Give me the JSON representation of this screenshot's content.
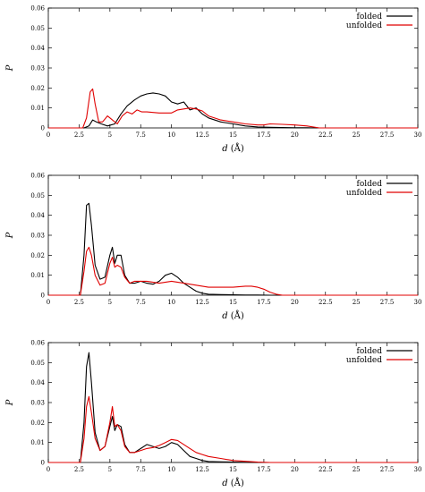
{
  "chart_data": [
    {
      "type": "line",
      "xlabel": "d",
      "xlabel_unit": "(Å)",
      "ylabel": "P",
      "xlim": [
        0,
        30
      ],
      "ylim": [
        0,
        0.06
      ],
      "xticks": [
        "0",
        "2.5",
        "5",
        "7.5",
        "10",
        "12.5",
        "15",
        "17.5",
        "20",
        "22.5",
        "25",
        "27.5",
        "30"
      ],
      "yticks": [
        "0",
        "0.01",
        "0.02",
        "0.03",
        "0.04",
        "0.05",
        "0.06"
      ],
      "grid": false,
      "legend_position": "top-right",
      "series": [
        {
          "name": "folded",
          "color": "#000000",
          "x": [
            0,
            2.9,
            3.3,
            3.6,
            3.9,
            4.3,
            4.8,
            5.4,
            5.9,
            6.4,
            7.0,
            7.5,
            8.0,
            8.5,
            9.0,
            9.5,
            10.0,
            10.5,
            11.0,
            11.5,
            12.0,
            12.5,
            13.0,
            14.0,
            15.0,
            16.0,
            17.0,
            18.0,
            19.0,
            20.0,
            21.0,
            22.0,
            22.5,
            30
          ],
          "y": [
            0,
            0,
            0.001,
            0.004,
            0.003,
            0.002,
            0.001,
            0.002,
            0.007,
            0.011,
            0.014,
            0.016,
            0.017,
            0.0175,
            0.017,
            0.016,
            0.013,
            0.012,
            0.013,
            0.009,
            0.01,
            0.007,
            0.005,
            0.003,
            0.002,
            0.001,
            0.0005,
            0.0003,
            0.0002,
            0.0001,
            0.0001,
            0,
            0,
            0
          ]
        },
        {
          "name": "unfolded",
          "color": "#e00000",
          "x": [
            0,
            2.8,
            3.1,
            3.4,
            3.6,
            3.8,
            4.1,
            4.4,
            4.8,
            5.2,
            5.6,
            6.0,
            6.4,
            6.8,
            7.2,
            7.6,
            8.0,
            9.0,
            10.0,
            10.5,
            11.0,
            11.5,
            12.0,
            12.5,
            13.0,
            14.0,
            15.0,
            16.0,
            17.0,
            17.5,
            18.0,
            19.0,
            20.0,
            21.0,
            22.0,
            30
          ],
          "y": [
            0,
            0,
            0.005,
            0.018,
            0.0195,
            0.012,
            0.003,
            0.003,
            0.006,
            0.004,
            0.002,
            0.006,
            0.008,
            0.007,
            0.009,
            0.008,
            0.008,
            0.0075,
            0.0075,
            0.009,
            0.0095,
            0.01,
            0.0095,
            0.0085,
            0.006,
            0.004,
            0.003,
            0.002,
            0.0015,
            0.0015,
            0.002,
            0.0018,
            0.0015,
            0.001,
            0,
            0
          ]
        }
      ]
    },
    {
      "type": "line",
      "xlabel": "d",
      "xlabel_unit": "(Å)",
      "ylabel": "P",
      "xlim": [
        0,
        30
      ],
      "ylim": [
        0,
        0.06
      ],
      "xticks": [
        "0",
        "2.5",
        "5",
        "7.5",
        "10",
        "12.5",
        "15",
        "17.5",
        "20",
        "22.5",
        "25",
        "27.5",
        "30"
      ],
      "yticks": [
        "0",
        "0.01",
        "0.02",
        "0.03",
        "0.04",
        "0.05",
        "0.06"
      ],
      "grid": false,
      "legend_position": "top-right",
      "series": [
        {
          "name": "folded",
          "color": "#000000",
          "x": [
            0,
            2.6,
            2.9,
            3.1,
            3.3,
            3.5,
            3.8,
            4.2,
            4.6,
            5.0,
            5.2,
            5.4,
            5.6,
            5.9,
            6.2,
            6.6,
            7.0,
            7.5,
            8.0,
            8.5,
            9.0,
            9.5,
            10.0,
            10.5,
            11.0,
            11.5,
            12.0,
            12.5,
            13.0,
            14.0,
            15.0,
            16.0,
            17.0,
            18.0,
            19.0,
            30
          ],
          "y": [
            0,
            0,
            0.02,
            0.045,
            0.046,
            0.035,
            0.015,
            0.008,
            0.009,
            0.02,
            0.024,
            0.016,
            0.02,
            0.02,
            0.01,
            0.006,
            0.006,
            0.007,
            0.006,
            0.0055,
            0.007,
            0.01,
            0.011,
            0.009,
            0.006,
            0.004,
            0.002,
            0.001,
            0.0005,
            0.0003,
            0.0002,
            0.0001,
            0.0001,
            0,
            0,
            0
          ]
        },
        {
          "name": "unfolded",
          "color": "#e00000",
          "x": [
            0,
            2.6,
            2.9,
            3.1,
            3.3,
            3.5,
            3.8,
            4.2,
            4.6,
            5.0,
            5.2,
            5.4,
            5.6,
            5.9,
            6.2,
            6.6,
            7.0,
            8.0,
            9.0,
            10.0,
            11.0,
            12.0,
            13.0,
            14.0,
            15.0,
            16.0,
            16.5,
            17.0,
            17.5,
            18.0,
            18.5,
            19.0,
            30
          ],
          "y": [
            0,
            0,
            0.012,
            0.022,
            0.024,
            0.02,
            0.01,
            0.005,
            0.006,
            0.016,
            0.019,
            0.014,
            0.015,
            0.014,
            0.009,
            0.006,
            0.007,
            0.007,
            0.006,
            0.007,
            0.006,
            0.005,
            0.004,
            0.004,
            0.004,
            0.0045,
            0.0045,
            0.004,
            0.003,
            0.0015,
            0.0005,
            0,
            0
          ]
        }
      ]
    },
    {
      "type": "line",
      "xlabel": "d",
      "xlabel_unit": "(Å)",
      "ylabel": "P",
      "xlim": [
        0,
        30
      ],
      "ylim": [
        0,
        0.06
      ],
      "xticks": [
        "0",
        "2.5",
        "5",
        "7.5",
        "10",
        "12.5",
        "15",
        "17.5",
        "20",
        "22.5",
        "25",
        "27.5",
        "30"
      ],
      "yticks": [
        "0",
        "0.01",
        "0.02",
        "0.03",
        "0.04",
        "0.05",
        "0.06"
      ],
      "grid": false,
      "legend_position": "top-right",
      "series": [
        {
          "name": "folded",
          "color": "#000000",
          "x": [
            0,
            2.6,
            2.9,
            3.1,
            3.3,
            3.5,
            3.8,
            4.2,
            4.6,
            5.0,
            5.2,
            5.4,
            5.6,
            5.9,
            6.2,
            6.6,
            7.0,
            7.5,
            8.0,
            8.5,
            9.0,
            9.5,
            10.0,
            10.5,
            11.0,
            11.5,
            12.0,
            12.5,
            13.0,
            14.0,
            15.0,
            16.0,
            17.0,
            18.0,
            30
          ],
          "y": [
            0,
            0,
            0.02,
            0.048,
            0.055,
            0.04,
            0.015,
            0.006,
            0.008,
            0.018,
            0.023,
            0.016,
            0.019,
            0.018,
            0.009,
            0.005,
            0.005,
            0.007,
            0.009,
            0.008,
            0.007,
            0.008,
            0.01,
            0.009,
            0.006,
            0.003,
            0.002,
            0.001,
            0.0005,
            0.0003,
            0.0002,
            0.0001,
            0,
            0,
            0
          ]
        },
        {
          "name": "unfolded",
          "color": "#e00000",
          "x": [
            0,
            2.6,
            2.9,
            3.1,
            3.3,
            3.5,
            3.8,
            4.2,
            4.6,
            5.0,
            5.2,
            5.4,
            5.6,
            5.9,
            6.2,
            6.6,
            7.0,
            7.5,
            8.0,
            8.5,
            9.0,
            9.5,
            10.0,
            10.5,
            11.0,
            11.5,
            12.0,
            12.5,
            13.0,
            14.0,
            15.0,
            16.0,
            17.0,
            18.0,
            30
          ],
          "y": [
            0,
            0,
            0.012,
            0.028,
            0.033,
            0.025,
            0.012,
            0.006,
            0.008,
            0.02,
            0.028,
            0.018,
            0.019,
            0.016,
            0.008,
            0.005,
            0.005,
            0.006,
            0.007,
            0.0075,
            0.0085,
            0.01,
            0.0115,
            0.011,
            0.009,
            0.007,
            0.005,
            0.004,
            0.003,
            0.002,
            0.001,
            0.0006,
            0.0002,
            0,
            0
          ]
        }
      ]
    }
  ]
}
